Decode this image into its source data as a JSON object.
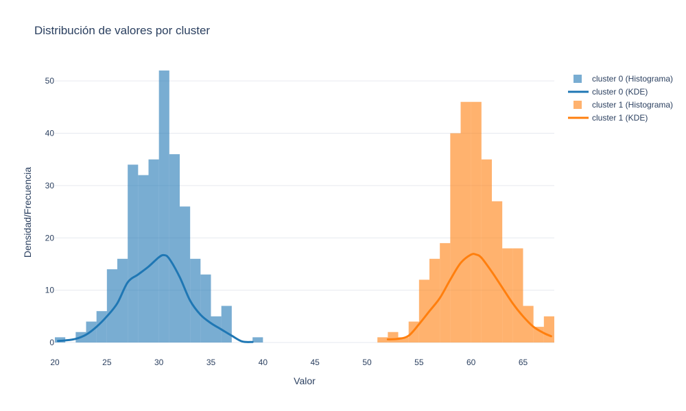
{
  "chart_data": {
    "type": "bar",
    "title": "Distribución de valores por cluster",
    "xlabel": "Valor",
    "ylabel": "Densidad/Frecuencia",
    "xlim": [
      20,
      68
    ],
    "ylim": [
      0,
      55
    ],
    "xticks": [
      20,
      25,
      30,
      35,
      40,
      45,
      50,
      55,
      60,
      65
    ],
    "yticks": [
      0,
      10,
      20,
      30,
      40,
      50
    ],
    "grid": true,
    "legend_position": "top-right",
    "bin_width": 1,
    "histograms": [
      {
        "name": "cluster 0 (Histograma)",
        "color": "#1f77b4",
        "opacity": 0.6,
        "bin_starts": [
          20,
          21,
          22,
          23,
          24,
          25,
          26,
          27,
          28,
          29,
          30,
          31,
          32,
          33,
          34,
          35,
          36,
          37,
          38,
          39
        ],
        "values": [
          1,
          0,
          2,
          4,
          6,
          14,
          16,
          34,
          32,
          35,
          52,
          36,
          26,
          16,
          13,
          5,
          7,
          0,
          0,
          1
        ]
      },
      {
        "name": "cluster 1 (Histograma)",
        "color": "#ff7f0e",
        "opacity": 0.6,
        "bin_starts": [
          51,
          52,
          53,
          54,
          55,
          56,
          57,
          58,
          59,
          60,
          61,
          62,
          63,
          64,
          65,
          66,
          67
        ],
        "values": [
          1,
          2,
          1,
          4,
          12,
          16,
          19,
          40,
          46,
          46,
          35,
          27,
          18,
          18,
          7,
          3,
          5
        ]
      }
    ],
    "kde": [
      {
        "name": "cluster 0 (KDE)",
        "color": "#1f77b4",
        "x": [
          20.3,
          21,
          22,
          23,
          24,
          25,
          26,
          27,
          28,
          29,
          30,
          30.5,
          31,
          32,
          33,
          34,
          35,
          36,
          37,
          38,
          39
        ],
        "y": [
          0.3,
          0.4,
          0.7,
          1.5,
          3.0,
          5.0,
          7.5,
          11.5,
          13.0,
          14.5,
          16.3,
          16.7,
          16.0,
          12.5,
          8.0,
          5.3,
          3.7,
          2.5,
          1.3,
          0.2,
          0.1
        ]
      },
      {
        "name": "cluster 1 (KDE)",
        "color": "#ff7f0e",
        "x": [
          52,
          53,
          54,
          55,
          56,
          57,
          58,
          59,
          60,
          60.5,
          61,
          62,
          63,
          64,
          65,
          66,
          67,
          67.7
        ],
        "y": [
          0.6,
          0.7,
          1.3,
          3.5,
          6.0,
          8.5,
          12.0,
          15.2,
          16.8,
          16.8,
          16.2,
          13.5,
          10.5,
          7.5,
          5.0,
          3.0,
          1.8,
          1.2
        ]
      }
    ],
    "legend": [
      {
        "label": "cluster 0 (Histograma)",
        "kind": "bar",
        "color": "#1f77b4"
      },
      {
        "label": "cluster 0 (KDE)",
        "kind": "line",
        "color": "#1f77b4"
      },
      {
        "label": "cluster 1 (Histograma)",
        "kind": "bar",
        "color": "#ff7f0e"
      },
      {
        "label": "cluster 1 (KDE)",
        "kind": "line",
        "color": "#ff7f0e"
      }
    ]
  }
}
